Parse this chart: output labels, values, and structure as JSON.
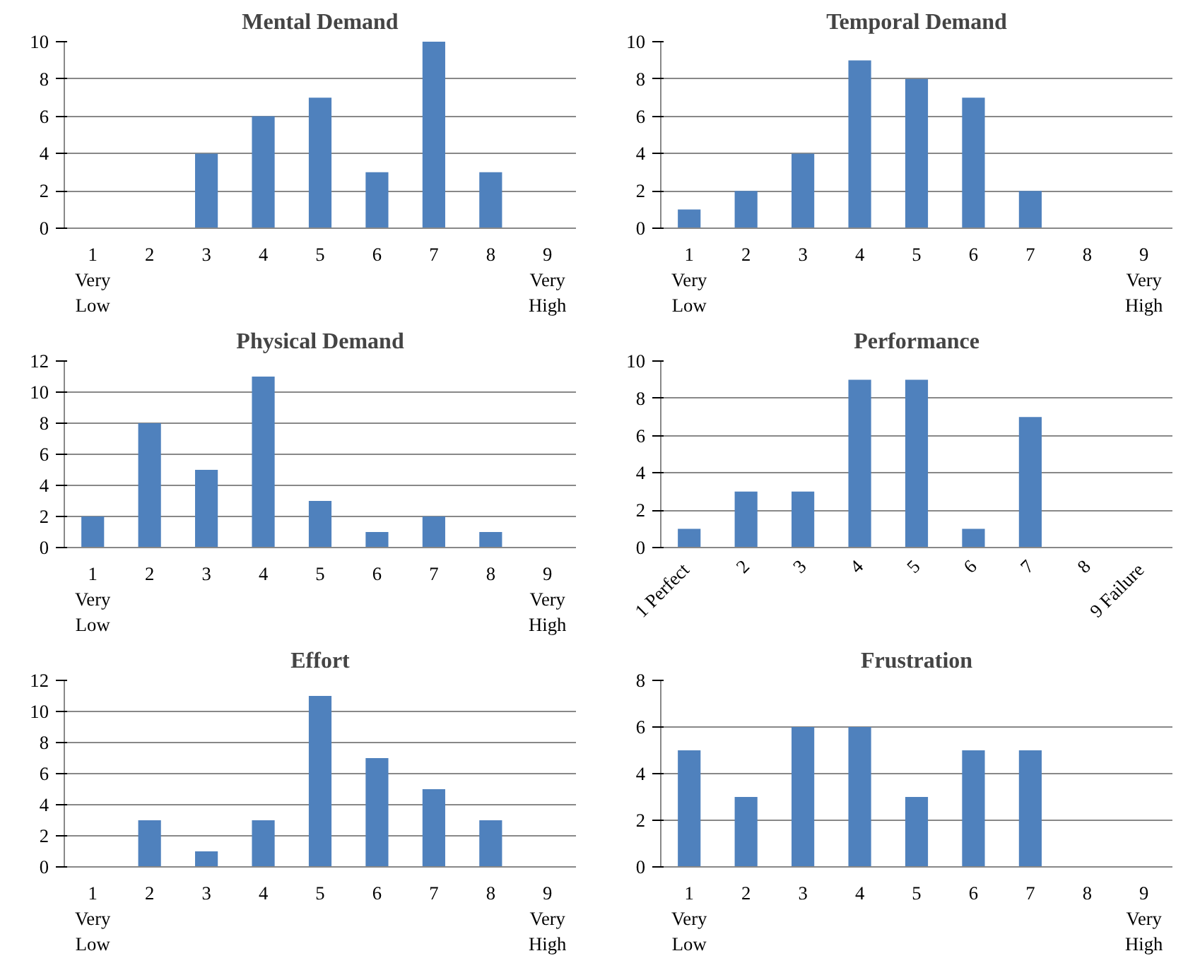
{
  "chart_data": [
    {
      "type": "bar",
      "title": "Mental Demand",
      "categories": [
        "1\nVery\nLow",
        "2",
        "3",
        "4",
        "5",
        "6",
        "7",
        "8",
        "9\nVery\nHigh"
      ],
      "values": [
        0,
        0,
        4,
        6,
        7,
        3,
        10,
        3,
        0
      ],
      "color": "#4f81bd",
      "ylim": [
        0,
        10
      ],
      "yticks": [
        0,
        2,
        4,
        6,
        8,
        10
      ],
      "grid": "y"
    },
    {
      "type": "bar",
      "title": "Temporal Demand",
      "categories": [
        "1\nVery\nLow",
        "2",
        "3",
        "4",
        "5",
        "6",
        "7",
        "8",
        "9\nVery\nHigh"
      ],
      "values": [
        1,
        2,
        4,
        9,
        8,
        7,
        2,
        0,
        0
      ],
      "color": "#4f81bd",
      "ylim": [
        0,
        10
      ],
      "yticks": [
        0,
        2,
        4,
        6,
        8,
        10
      ],
      "grid": "y"
    },
    {
      "type": "bar",
      "title": "Physical Demand",
      "categories": [
        "1\nVery\nLow",
        "2",
        "3",
        "4",
        "5",
        "6",
        "7",
        "8",
        "9\nVery\nHigh"
      ],
      "values": [
        2,
        8,
        5,
        11,
        3,
        1,
        2,
        1,
        0
      ],
      "color": "#4f81bd",
      "ylim": [
        0,
        12
      ],
      "yticks": [
        0,
        2,
        4,
        6,
        8,
        10,
        12
      ],
      "grid": "y"
    },
    {
      "type": "bar",
      "title": "Performance",
      "categories": [
        "1  Perfect",
        "2",
        "3",
        "4",
        "5",
        "6",
        "7",
        "8",
        "9  Failure"
      ],
      "values": [
        1,
        3,
        3,
        9,
        9,
        1,
        7,
        0,
        0
      ],
      "color": "#4f81bd",
      "ylim": [
        0,
        10
      ],
      "yticks": [
        0,
        2,
        4,
        6,
        8,
        10
      ],
      "grid": "y"
    },
    {
      "type": "bar",
      "title": "Effort",
      "categories": [
        "1\nVery\nLow",
        "2",
        "3",
        "4",
        "5",
        "6",
        "7",
        "8",
        "9\nVery\nHigh"
      ],
      "values": [
        0,
        3,
        1,
        3,
        11,
        7,
        5,
        3,
        0
      ],
      "color": "#4f81bd",
      "ylim": [
        0,
        12
      ],
      "yticks": [
        0,
        2,
        4,
        6,
        8,
        10,
        12
      ],
      "grid": "y"
    },
    {
      "type": "bar",
      "title": "Frustration",
      "categories": [
        "1\nVery\nLow",
        "2",
        "3",
        "4",
        "5",
        "6",
        "7",
        "8",
        "9\nVery\nHigh"
      ],
      "values": [
        5,
        3,
        6,
        6,
        3,
        5,
        5,
        0,
        0
      ],
      "color": "#4f81bd",
      "ylim": [
        0,
        8
      ],
      "yticks": [
        0,
        2,
        4,
        6,
        8
      ],
      "grid": "y"
    }
  ]
}
